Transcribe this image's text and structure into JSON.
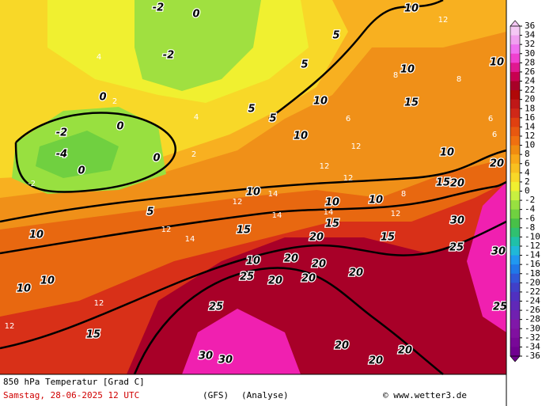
{
  "map": {
    "title": "850 hPa Temperatur [Grad C]",
    "date": "Samstag, 28-06-2025  12 UTC",
    "model": "(GFS)",
    "run": "(Analyse)",
    "credit": "© www.wetter3.de",
    "colorbar": {
      "ticks": [
        36,
        34,
        32,
        30,
        28,
        26,
        24,
        22,
        20,
        18,
        16,
        14,
        12,
        10,
        8,
        6,
        4,
        2,
        0,
        -2,
        -4,
        -6,
        -8,
        -10,
        -12,
        -14,
        -16,
        -18,
        -20,
        -22,
        -24,
        -26,
        -28,
        -30,
        -32,
        -34,
        -36
      ],
      "colors": [
        "#f4c8f4",
        "#f0a0f0",
        "#f070f0",
        "#f040d0",
        "#e01890",
        "#c80050",
        "#a80028",
        "#b00808",
        "#c01818",
        "#d02818",
        "#e04010",
        "#e85810",
        "#f07010",
        "#f08c10",
        "#f8a818",
        "#f8c020",
        "#f8d828",
        "#f0f030",
        "#c8f040",
        "#98e040",
        "#70d040",
        "#48c048",
        "#30c070",
        "#20c0a8",
        "#20b8d8",
        "#2098f0",
        "#2078e8",
        "#3058d8",
        "#4040c8",
        "#5030c0",
        "#6028b8",
        "#7020b0",
        "#8018a8",
        "#8010a0",
        "#780898",
        "#700090"
      ]
    },
    "contour_labels": [
      -2,
      0,
      -2,
      0,
      0,
      -2,
      -4,
      0,
      0,
      5,
      5,
      10,
      10,
      10,
      15,
      15,
      20,
      20,
      20,
      20,
      20,
      25,
      25,
      30,
      30,
      20,
      20,
      20,
      25,
      30,
      25,
      30,
      20,
      15,
      10,
      10,
      15,
      10,
      10,
      10,
      15,
      20,
      10,
      5,
      5,
      10,
      5,
      10,
      10,
      15,
      20,
      10
    ],
    "minor_labels": [
      4,
      2,
      -2,
      2,
      4,
      6,
      8,
      12,
      12,
      14,
      12,
      14,
      14,
      12,
      12,
      14,
      12,
      8,
      6,
      12,
      12,
      8,
      6,
      12
    ]
  }
}
